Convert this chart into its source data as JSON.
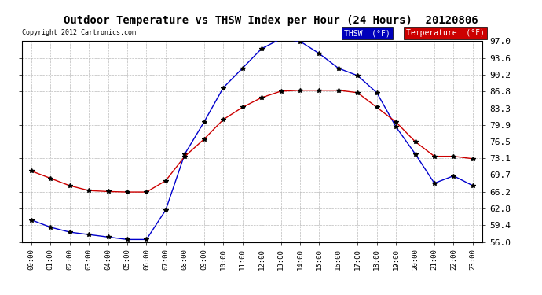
{
  "title": "Outdoor Temperature vs THSW Index per Hour (24 Hours)  20120806",
  "copyright": "Copyright 2012 Cartronics.com",
  "hours": [
    "00:00",
    "01:00",
    "02:00",
    "03:00",
    "04:00",
    "05:00",
    "06:00",
    "07:00",
    "08:00",
    "09:00",
    "10:00",
    "11:00",
    "12:00",
    "13:00",
    "14:00",
    "15:00",
    "16:00",
    "17:00",
    "18:00",
    "19:00",
    "20:00",
    "21:00",
    "22:00",
    "23:00"
  ],
  "temperature": [
    70.5,
    69.0,
    67.5,
    66.5,
    66.3,
    66.2,
    66.2,
    68.5,
    73.5,
    77.0,
    81.0,
    83.5,
    85.5,
    86.8,
    87.0,
    87.0,
    87.0,
    86.5,
    83.5,
    80.5,
    76.5,
    73.5,
    73.5,
    73.0
  ],
  "thsw": [
    60.5,
    59.0,
    58.0,
    57.5,
    57.0,
    56.5,
    56.5,
    62.5,
    74.0,
    80.5,
    87.5,
    91.5,
    95.5,
    97.5,
    97.0,
    94.5,
    91.5,
    90.0,
    86.5,
    79.5,
    74.0,
    68.0,
    69.5,
    67.5
  ],
  "temp_color": "#cc0000",
  "thsw_color": "#0000cc",
  "ylim_min": 56.0,
  "ylim_max": 97.0,
  "yticks": [
    56.0,
    59.4,
    62.8,
    66.2,
    69.7,
    73.1,
    76.5,
    79.9,
    83.3,
    86.8,
    90.2,
    93.6,
    97.0
  ],
  "bg_color": "#ffffff",
  "grid_color": "#bbbbbb",
  "legend_thsw_bg": "#0000bb",
  "legend_temp_bg": "#cc0000",
  "legend_thsw_text": "THSW  (°F)",
  "legend_temp_text": "Temperature  (°F)",
  "marker": "*",
  "marker_size": 4,
  "line_width": 1.0
}
